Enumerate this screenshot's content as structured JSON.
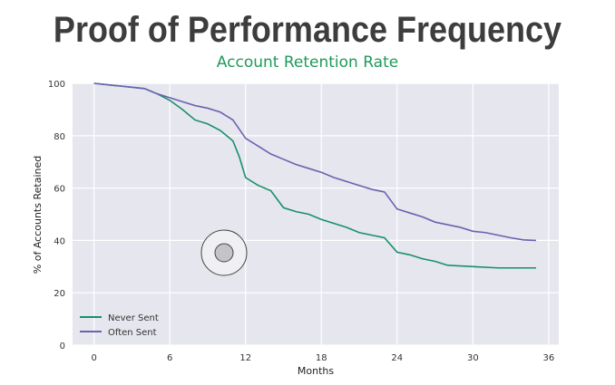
{
  "chart_data": {
    "type": "line",
    "title": "Proof of Performance Frequency",
    "subtitle": "Account Retention Rate",
    "xlabel": "Months",
    "ylabel": "% of Accounts Retained",
    "xlim": [
      -1.7,
      36.8
    ],
    "ylim": [
      0,
      100
    ],
    "xticks": [
      "0",
      "6",
      "12",
      "18",
      "24",
      "30",
      "36"
    ],
    "yticks": [
      "0",
      "20",
      "40",
      "60",
      "80",
      "100"
    ],
    "grid": true,
    "legend_position": "bottom-left",
    "series": [
      {
        "name": "Never Sent",
        "color": "#17906a",
        "x": [
          0,
          1,
          2,
          3,
          4,
          5,
          6,
          7,
          8,
          9,
          10,
          11,
          11.5,
          12,
          13,
          14,
          15,
          16,
          17,
          18,
          19,
          20,
          21,
          22,
          23,
          24,
          25,
          26,
          27,
          28,
          30,
          32,
          35
        ],
        "y": [
          100,
          99.5,
          99,
          98.5,
          98,
          96,
          93.5,
          90,
          86,
          84.5,
          82,
          78,
          72,
          64,
          61,
          59,
          52.5,
          51,
          50,
          48,
          46.5,
          45,
          43,
          42,
          41,
          35.5,
          34.5,
          33,
          32,
          30.5,
          30,
          29.5,
          29.5
        ]
      },
      {
        "name": "Often Sent",
        "color": "#6a62b0",
        "x": [
          0,
          2,
          4,
          5,
          6,
          7,
          8,
          9,
          10,
          11,
          12,
          13,
          14,
          15,
          16,
          17,
          18,
          19,
          20,
          21,
          22,
          23,
          24,
          25,
          26,
          27,
          28,
          29,
          30,
          31,
          32,
          33,
          34,
          35
        ],
        "y": [
          100,
          99,
          98,
          96,
          94.5,
          93,
          91.5,
          90.5,
          89,
          86,
          79,
          76,
          73,
          71,
          69,
          67.5,
          66,
          64,
          62.5,
          61,
          59.5,
          58.5,
          52,
          50.5,
          49,
          47,
          46,
          45,
          43.5,
          43,
          42,
          41,
          40.2,
          40
        ]
      }
    ]
  }
}
